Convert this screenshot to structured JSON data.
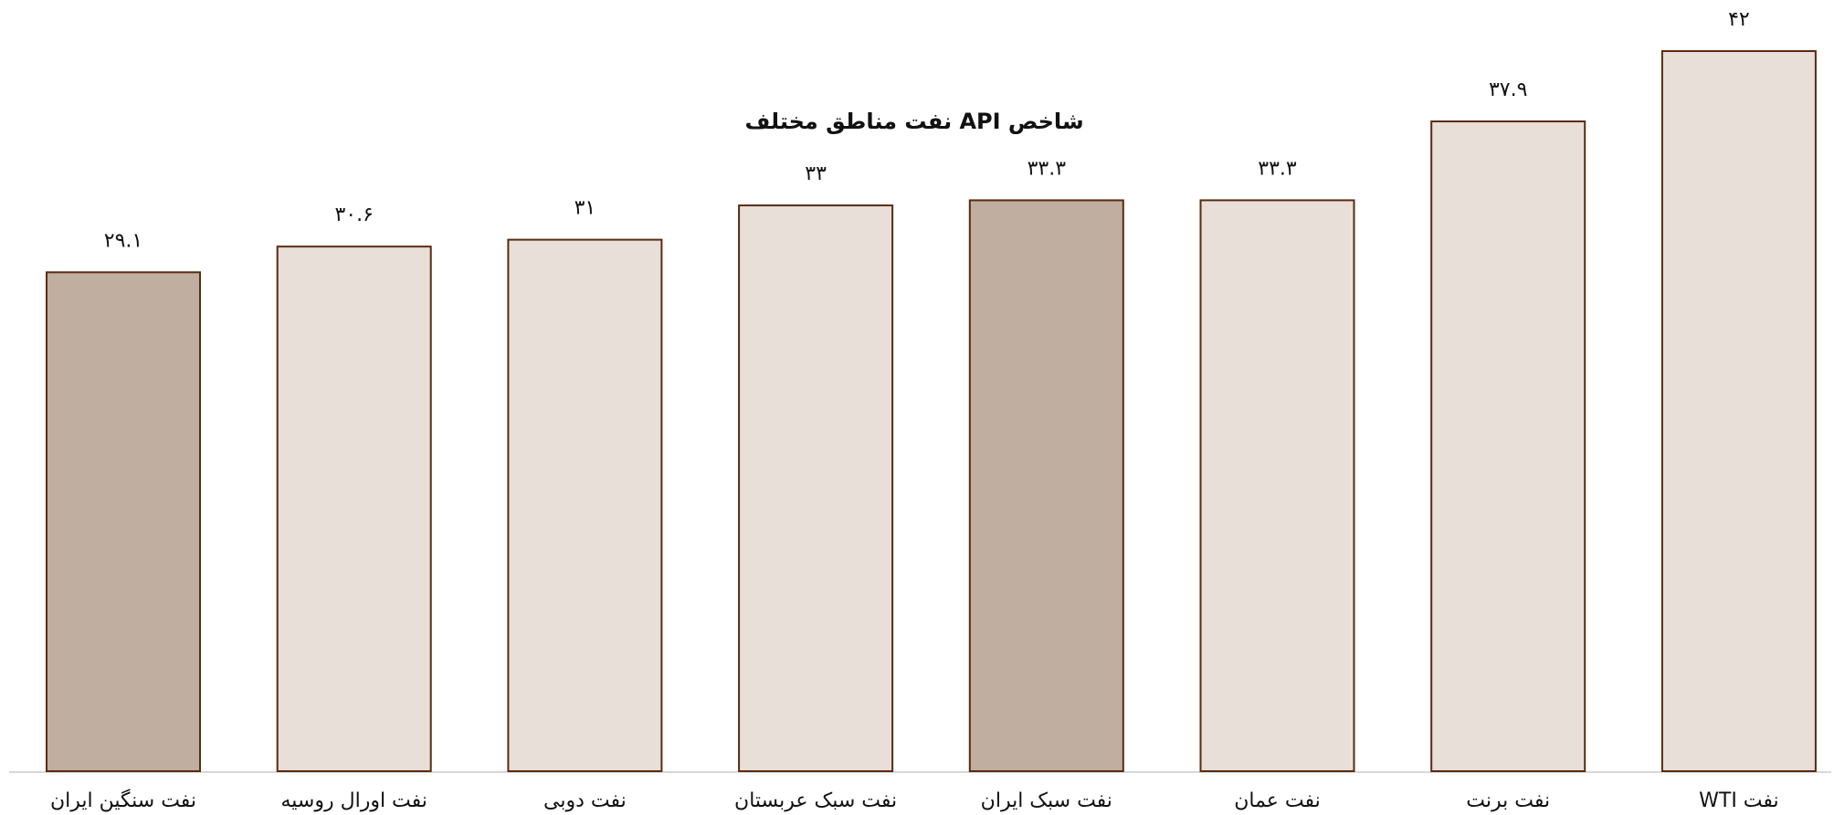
{
  "chart_data": {
    "type": "bar",
    "title": "شاخص API نفت مناطق مختلف",
    "categories": [
      "نفت سنگین ایران",
      "نفت اورال روسیه",
      "نفت دوبی",
      "نفت سبک عربستان",
      "نفت سبک ایران",
      "نفت عمان",
      "نفت برنت",
      "نفت WTI"
    ],
    "values": [
      29.1,
      30.6,
      31,
      33,
      33.3,
      33.3,
      37.9,
      42
    ],
    "value_labels": [
      "۲۹.۱",
      "۳۰.۶",
      "۳۱",
      "۳۳",
      "۳۳.۳",
      "۳۳.۳",
      "۳۷.۹",
      "۴۲"
    ],
    "colors": [
      "#c0afa0",
      "#e8dfd8",
      "#e8dfd8",
      "#e8dfd8",
      "#c0afa0",
      "#e8dfd8",
      "#e8dfd8",
      "#e8dfd8"
    ],
    "edge_color": "#5a2a10"
  }
}
